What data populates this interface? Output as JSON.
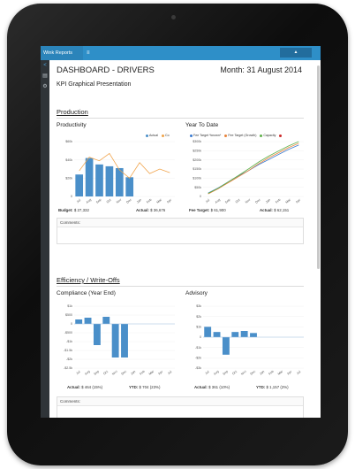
{
  "app": {
    "brand": "Wink Reports",
    "menu_glyph": "≡",
    "user_glyph": "▲"
  },
  "sidebar": {
    "icons": [
      "share-icon",
      "document-icon",
      "gear-icon"
    ],
    "glyphs": [
      "<",
      "▤",
      "⚙"
    ]
  },
  "header": {
    "title": "DASHBOARD - DRIVERS",
    "month": "Month: 31 August 2014",
    "subtitle": "KPI Graphical Presentation"
  },
  "sections": {
    "production": "Production",
    "efficiency": "Efficiency / Write-Offs"
  },
  "comments_label": "Comments:",
  "colors": {
    "bar": "#4a8fc9",
    "budget_line": "#f0a34a",
    "fee_blue": "#3b7bd0",
    "fee_orange": "#e8833a",
    "capacity": "#5fb04a",
    "red": "#cc2b2b"
  },
  "productivity": {
    "title": "Productivity",
    "legend": [
      "Actual",
      "Co"
    ],
    "footer_budget_label": "Budget:",
    "footer_budget_value": "$ 27,332",
    "footer_actual_label": "Actual:",
    "footer_actual_value": "$ 36,676",
    "chart_data": {
      "type": "bar",
      "categories": [
        "Jul",
        "Aug",
        "Sep",
        "Oct",
        "Nov",
        "Dec",
        "Jan",
        "Feb",
        "Mar",
        "Apr"
      ],
      "series": [
        {
          "name": "Actual",
          "type": "bar",
          "values": [
            24,
            42,
            35,
            33,
            31,
            21,
            null,
            null,
            null,
            null
          ]
        },
        {
          "name": "Co",
          "type": "line",
          "values": [
            28,
            43,
            39,
            47,
            29,
            20,
            37,
            25,
            30,
            26
          ]
        }
      ],
      "yticks": [
        "$60k",
        "$40k",
        "$20k",
        "0"
      ],
      "ylim": [
        0,
        60
      ]
    }
  },
  "ytd": {
    "title": "Year To Date",
    "legend": [
      "Fee Target *known*",
      "Fee Target (Growth)",
      "Capacity"
    ],
    "footer_target_label": "Fee Target:",
    "footer_target_value": "$ 61,900",
    "footer_actual_label": "Actual:",
    "footer_actual_value": "$ 62,151",
    "chart_data": {
      "type": "line",
      "categories": [
        "Jul",
        "Aug",
        "Sep",
        "Oct",
        "Nov",
        "Dec",
        "Jan",
        "Feb",
        "Mar",
        "Apr"
      ],
      "series": [
        {
          "name": "Fee Target *known*",
          "values": [
            20,
            50,
            85,
            120,
            150,
            185,
            215,
            245,
            275,
            300
          ]
        },
        {
          "name": "Fee Target (Growth)",
          "values": [
            15,
            45,
            80,
            115,
            150,
            190,
            225,
            255,
            285,
            310
          ]
        },
        {
          "name": "Capacity",
          "values": [
            18,
            48,
            85,
            122,
            160,
            200,
            235,
            265,
            295,
            320
          ]
        }
      ],
      "yticks": [
        "$300k",
        "$250k",
        "$200k",
        "$150k",
        "$100k",
        "$50k",
        "0"
      ],
      "ylim": [
        0,
        320
      ]
    }
  },
  "compliance": {
    "title": "Compliance (Year End)",
    "footer_actual_label": "Actual:",
    "footer_actual_value": "$ 464 (15%)",
    "footer_ytd_label": "YTD:",
    "footer_ytd_value": "$ 704 (23%)",
    "chart_data": {
      "type": "bar",
      "categories": [
        "Jul",
        "Aug",
        "Sep",
        "Oct",
        "Nov",
        "Dec",
        "Jan",
        "Feb",
        "Mar",
        "Apr",
        "Jul"
      ],
      "values": [
        0.25,
        0.35,
        -1.2,
        0.4,
        -1.9,
        -1.9,
        null,
        null,
        null,
        null,
        null
      ],
      "yticks": [
        "$1k",
        "$500",
        "0",
        "-$500",
        "-$1k",
        "-$1.5k",
        "-$2k",
        "-$2.5k"
      ],
      "ylim": [
        -2.5,
        1
      ]
    }
  },
  "advisory": {
    "title": "Advisory",
    "footer_actual_label": "Actual:",
    "footer_actual_value": "$ 361 (10%)",
    "footer_ytd_label": "YTD:",
    "footer_ytd_value": "$ 1,157 (2%)",
    "chart_data": {
      "type": "bar",
      "categories": [
        "Jul",
        "Aug",
        "Sep",
        "Oct",
        "Nov",
        "Dec",
        "Jan",
        "Feb",
        "Mar",
        "Apr",
        "Jul"
      ],
      "values": [
        1.0,
        0.5,
        -1.7,
        0.5,
        0.6,
        0.4,
        null,
        null,
        null,
        null,
        null
      ],
      "yticks": [
        "$3k",
        "$2k",
        "$1k",
        "0",
        "-$1k",
        "-$2k",
        "-$3k"
      ],
      "ylim": [
        -3,
        3
      ]
    }
  }
}
